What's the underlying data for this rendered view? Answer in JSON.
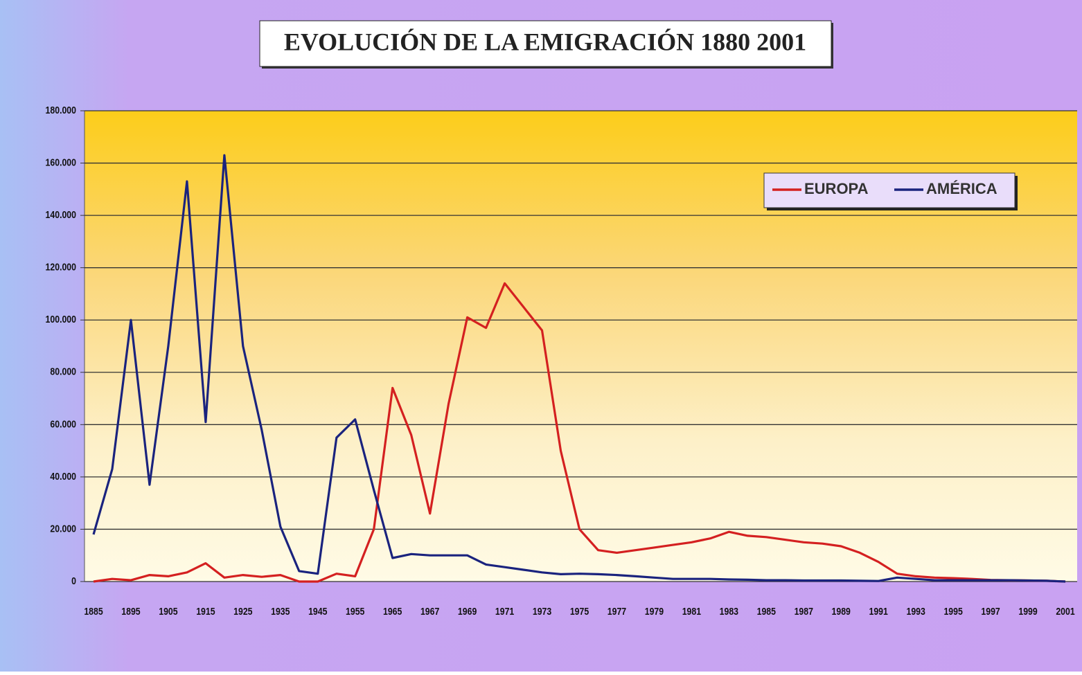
{
  "chart_data": {
    "type": "line",
    "title": "EVOLUCIÓN DE LA EMIGRACIÓN 1880 2001",
    "categories": [
      "1885",
      null,
      "1895",
      null,
      "1905",
      null,
      "1915",
      null,
      "1925",
      null,
      "1935",
      null,
      "1945",
      null,
      "1955",
      null,
      "1965",
      null,
      "1967",
      null,
      "1969",
      null,
      "1971",
      null,
      "1973",
      null,
      "1975",
      null,
      "1977",
      null,
      "1979",
      null,
      "1981",
      null,
      "1983",
      null,
      "1985",
      null,
      "1987",
      null,
      "1989",
      null,
      "1991",
      null,
      "1993",
      null,
      "1995",
      null,
      "1997",
      null,
      "1999",
      null,
      "2001"
    ],
    "series": [
      {
        "name": "EUROPA",
        "color": "#d42020",
        "values": [
          0,
          1000,
          500,
          2500,
          2000,
          3500,
          7000,
          1500,
          2500,
          1800,
          2500,
          0,
          0,
          3000,
          2000,
          20000,
          74000,
          56000,
          26000,
          68000,
          101000,
          97000,
          114000,
          105000,
          96000,
          50000,
          20000,
          12000,
          11000,
          12000,
          13000,
          14000,
          15000,
          16500,
          19000,
          17500,
          17000,
          16000,
          15000,
          14500,
          13500,
          11000,
          7500,
          3000,
          2000,
          1500,
          1300,
          1000,
          600,
          500,
          400,
          300,
          0
        ]
      },
      {
        "name": "AMÉRICA",
        "color": "#1a237e",
        "values": [
          18000,
          43000,
          100000,
          37000,
          90000,
          153000,
          61000,
          163000,
          90000,
          58000,
          21000,
          4000,
          3000,
          55000,
          62000,
          35000,
          9000,
          10500,
          10000,
          10000,
          10000,
          6500,
          5500,
          4500,
          3500,
          2800,
          3000,
          2800,
          2500,
          2000,
          1500,
          1000,
          1000,
          1000,
          800,
          700,
          500,
          500,
          400,
          400,
          400,
          300,
          200,
          1500,
          1000,
          500,
          500,
          500,
          500,
          500,
          400,
          300,
          0
        ]
      }
    ],
    "ylim": [
      0,
      180000
    ],
    "yticks": [
      0,
      {
        "value": 20000,
        "label": "20.000"
      },
      {
        "value": 40000,
        "label": "40.000"
      },
      {
        "value": 60000,
        "label": "60.000"
      },
      {
        "value": 80000,
        "label": "80.000"
      },
      {
        "value": 100000,
        "label": "100.000"
      },
      {
        "value": 120000,
        "label": "120.000"
      },
      {
        "value": 140000,
        "label": "140.000"
      },
      {
        "value": 160000,
        "label": "160.000"
      },
      {
        "value": 180000,
        "label": "180.000"
      }
    ],
    "grid": true,
    "legend": "upper right"
  }
}
